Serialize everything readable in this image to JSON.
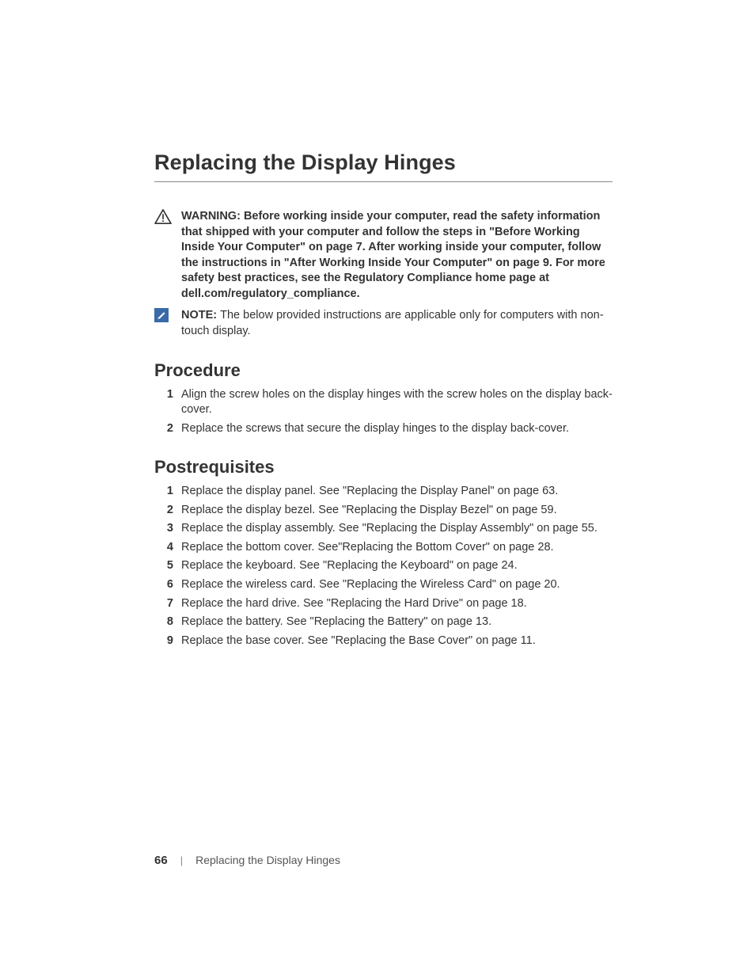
{
  "title": "Replacing the Display Hinges",
  "warning": {
    "lead": "WARNING:  ",
    "text": "Before working inside your computer, read the safety information that shipped with your computer and follow the steps in \"Before Working Inside Your Computer\" on page 7. After working inside your computer, follow the instructions in \"After Working Inside Your Computer\" on page 9. For more safety best practices, see the Regulatory Compliance home page at dell.com/regulatory_compliance."
  },
  "note": {
    "lead": "NOTE: ",
    "text": "The below provided instructions are applicable only for computers with non-touch display."
  },
  "procedure": {
    "heading": "Procedure",
    "steps": [
      "Align the screw holes on the display hinges with the screw holes on the display back-cover.",
      "Replace the screws that secure the display hinges to the display back-cover."
    ]
  },
  "postreq": {
    "heading": "Postrequisites",
    "steps": [
      "Replace the display panel. See \"Replacing the Display Panel\" on page 63.",
      "Replace the display bezel. See \"Replacing the Display Bezel\" on page 59.",
      "Replace the display assembly. See \"Replacing the Display Assembly\" on page 55.",
      "Replace the bottom cover. See\"Replacing the Bottom Cover\" on page 28.",
      "Replace the keyboard. See \"Replacing the Keyboard\" on page 24.",
      "Replace the wireless card. See \"Replacing the Wireless Card\" on page 20.",
      "Replace the hard drive. See \"Replacing the Hard Drive\" on page 18.",
      "Replace the battery. See \"Replacing the Battery\" on page 13.",
      "Replace the base cover. See \"Replacing the Base Cover\" on page 11."
    ]
  },
  "footer": {
    "page": "66",
    "separator": "|",
    "section": "Replacing the Display Hinges"
  },
  "colors": {
    "text": "#333333",
    "rule": "#888888",
    "note_icon_bg": "#3a6aa8",
    "background": "#ffffff"
  }
}
